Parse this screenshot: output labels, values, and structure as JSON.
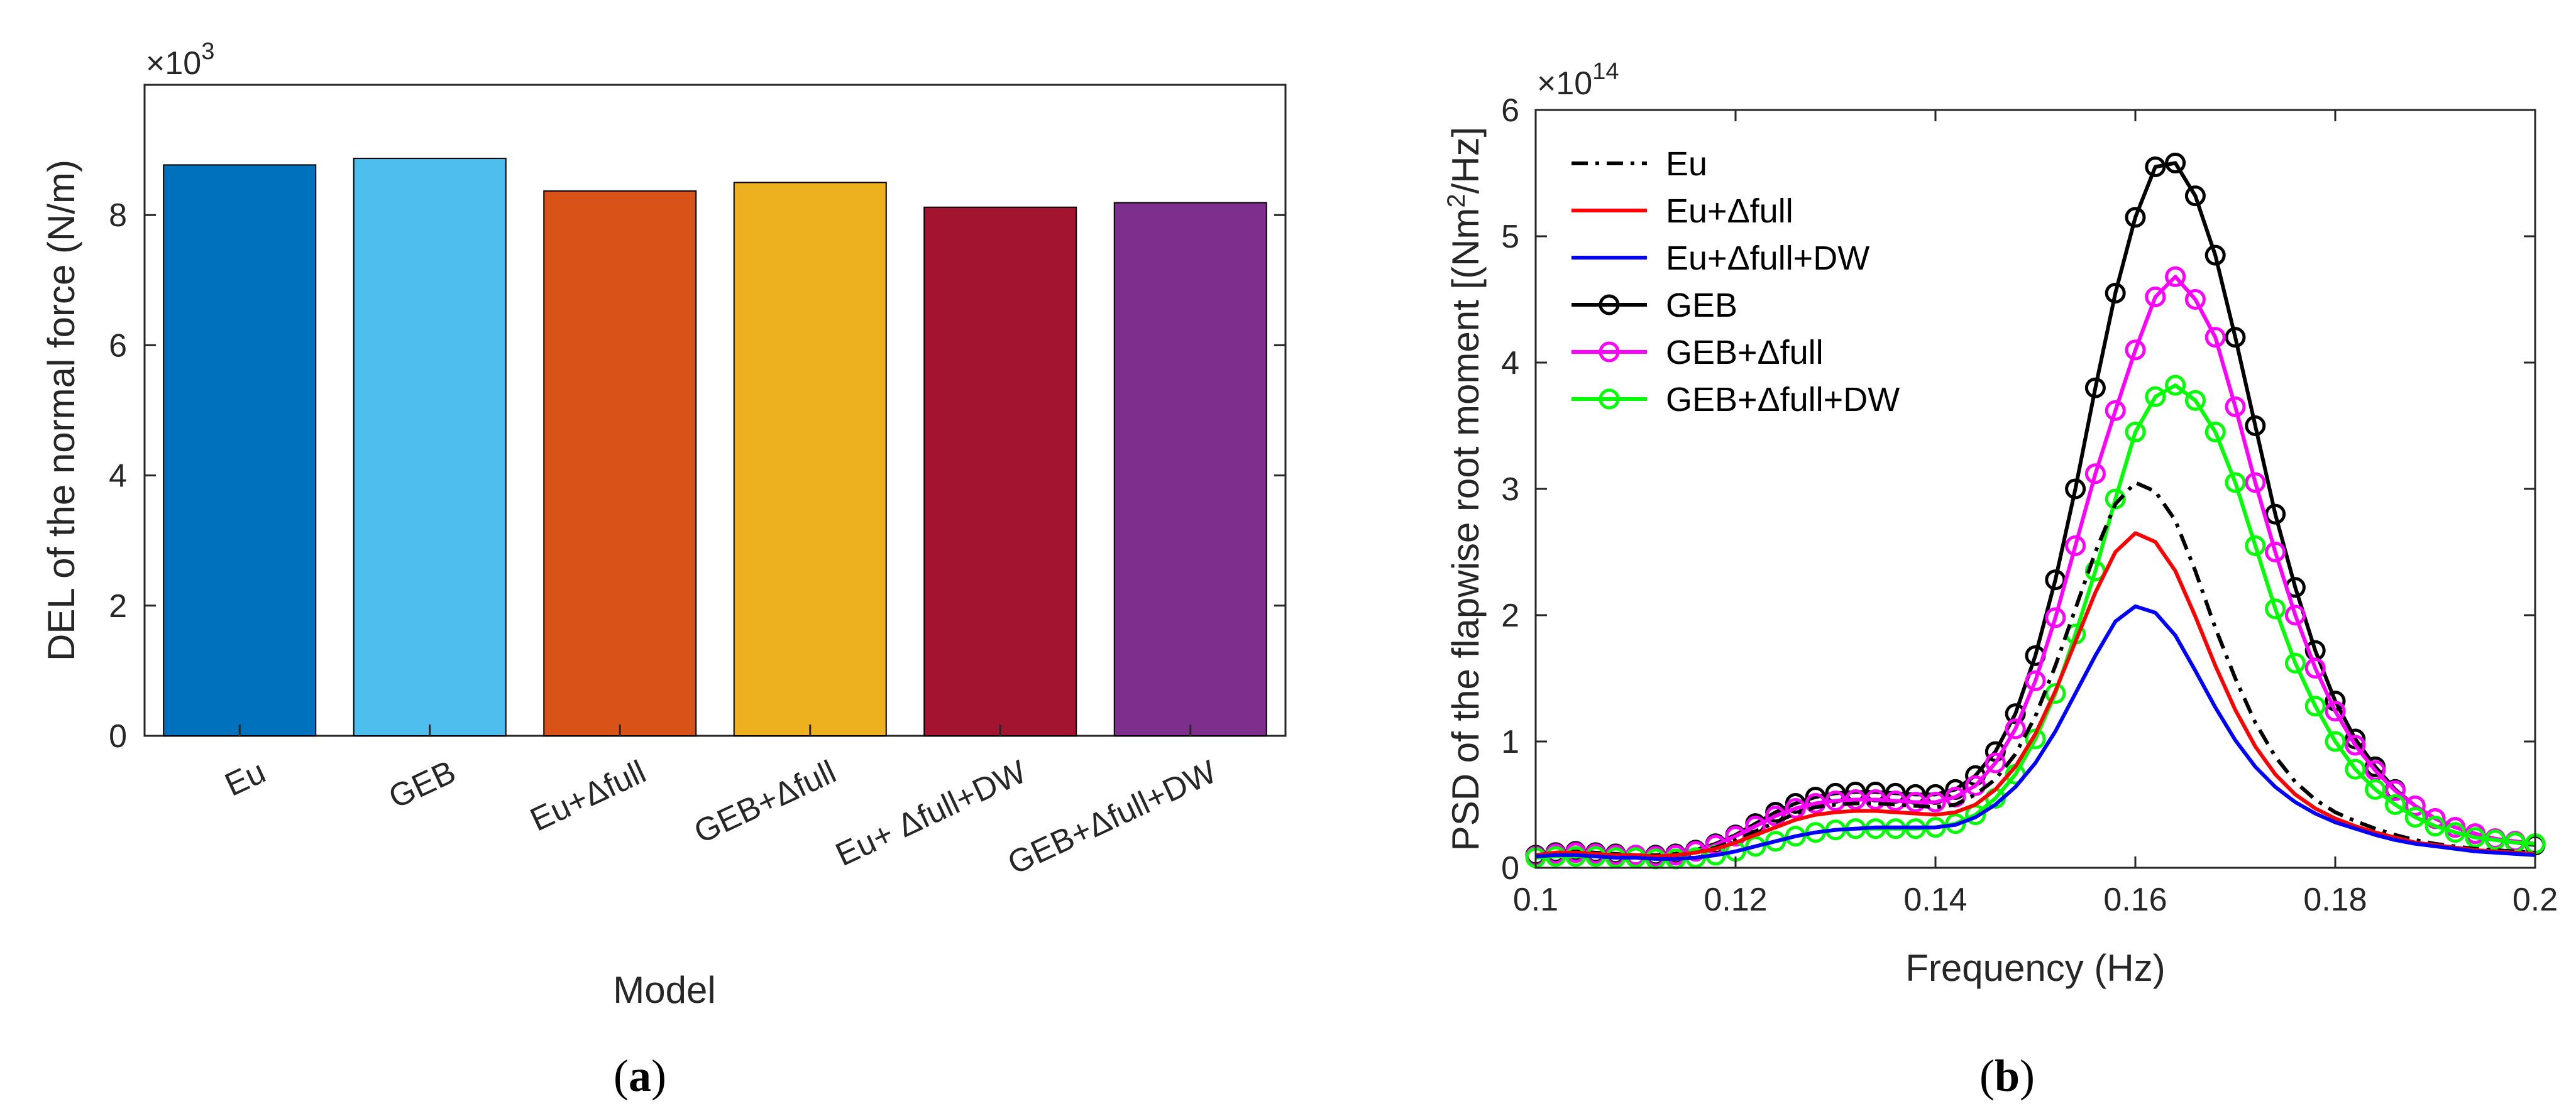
{
  "panels": {
    "a": {
      "caption_open": "(",
      "caption_letter": "a",
      "caption_close": ")"
    },
    "b": {
      "caption_open": "(",
      "caption_letter": "b",
      "caption_close": ")"
    }
  },
  "chart_data": [
    {
      "type": "bar",
      "title": "",
      "xlabel": "Model",
      "ylabel": "DEL of the normal force (N/m)",
      "exponent_label": "×10",
      "exponent_power": "3",
      "ylim": [
        0,
        10
      ],
      "yticks": [
        0,
        2,
        4,
        6,
        8
      ],
      "grid": false,
      "categories": [
        "Eu",
        "GEB",
        "Eu+Δfull",
        "GEB+Δfull",
        "Eu+ Δfull+DW",
        "GEB+Δfull+DW"
      ],
      "values": [
        8.77,
        8.87,
        8.37,
        8.5,
        8.12,
        8.19
      ],
      "colors": [
        "#0072BD",
        "#4DBEEE",
        "#D95319",
        "#EDB120",
        "#A2142F",
        "#7E2F8E"
      ]
    },
    {
      "type": "line",
      "title": "",
      "xlabel": "Frequency (Hz)",
      "ylabel_prefix": "PSD of the flapwise root moment [(Nm",
      "ylabel_sup": "2",
      "ylabel_suffix": "/Hz]",
      "exponent_label": "×10",
      "exponent_power": "14",
      "xlim": [
        0.1,
        0.2
      ],
      "ylim": [
        0,
        6
      ],
      "xticks": [
        "0.1",
        "0.12",
        "0.14",
        "0.16",
        "0.18",
        "0.2"
      ],
      "yticks": [
        "0",
        "1",
        "2",
        "3",
        "4",
        "5",
        "6"
      ],
      "grid": false,
      "legend_position": "top-left",
      "x": [
        0.1,
        0.102,
        0.104,
        0.106,
        0.108,
        0.11,
        0.112,
        0.114,
        0.116,
        0.118,
        0.12,
        0.122,
        0.124,
        0.126,
        0.128,
        0.13,
        0.132,
        0.134,
        0.136,
        0.138,
        0.14,
        0.142,
        0.144,
        0.146,
        0.148,
        0.15,
        0.152,
        0.154,
        0.156,
        0.158,
        0.16,
        0.162,
        0.164,
        0.166,
        0.168,
        0.17,
        0.172,
        0.174,
        0.176,
        0.178,
        0.18,
        0.182,
        0.184,
        0.186,
        0.188,
        0.19,
        0.192,
        0.194,
        0.196,
        0.198,
        0.2
      ],
      "series": [
        {
          "name": "Eu",
          "color": "#000000",
          "dash": "dashdot",
          "marker": false,
          "values": [
            0.1,
            0.12,
            0.12,
            0.11,
            0.1,
            0.1,
            0.09,
            0.1,
            0.12,
            0.16,
            0.22,
            0.29,
            0.36,
            0.43,
            0.48,
            0.5,
            0.51,
            0.51,
            0.5,
            0.49,
            0.48,
            0.5,
            0.58,
            0.7,
            0.9,
            1.2,
            1.6,
            2.05,
            2.5,
            2.88,
            3.05,
            2.98,
            2.75,
            2.35,
            1.9,
            1.5,
            1.15,
            0.88,
            0.68,
            0.54,
            0.44,
            0.37,
            0.31,
            0.26,
            0.22,
            0.19,
            0.17,
            0.15,
            0.14,
            0.13,
            0.12
          ]
        },
        {
          "name": "Eu+Δfull",
          "color": "#FF0000",
          "dash": "solid",
          "marker": false,
          "values": [
            0.1,
            0.12,
            0.12,
            0.11,
            0.1,
            0.1,
            0.09,
            0.1,
            0.12,
            0.15,
            0.2,
            0.26,
            0.32,
            0.38,
            0.42,
            0.44,
            0.45,
            0.45,
            0.44,
            0.43,
            0.42,
            0.44,
            0.5,
            0.62,
            0.8,
            1.06,
            1.4,
            1.79,
            2.18,
            2.5,
            2.65,
            2.58,
            2.35,
            1.99,
            1.6,
            1.25,
            0.96,
            0.74,
            0.58,
            0.47,
            0.39,
            0.33,
            0.28,
            0.24,
            0.2,
            0.18,
            0.16,
            0.14,
            0.13,
            0.12,
            0.11
          ]
        },
        {
          "name": "Eu+Δfull+DW",
          "color": "#0000FF",
          "dash": "solid",
          "marker": false,
          "values": [
            0.09,
            0.1,
            0.1,
            0.09,
            0.08,
            0.08,
            0.07,
            0.07,
            0.08,
            0.1,
            0.13,
            0.17,
            0.21,
            0.25,
            0.28,
            0.3,
            0.31,
            0.32,
            0.32,
            0.32,
            0.32,
            0.34,
            0.4,
            0.5,
            0.64,
            0.83,
            1.08,
            1.38,
            1.68,
            1.95,
            2.07,
            2.02,
            1.84,
            1.56,
            1.27,
            1.01,
            0.8,
            0.64,
            0.52,
            0.43,
            0.36,
            0.31,
            0.26,
            0.22,
            0.19,
            0.17,
            0.15,
            0.13,
            0.12,
            0.11,
            0.1
          ]
        },
        {
          "name": "GEB",
          "color": "#000000",
          "dash": "solid",
          "marker": true,
          "values": [
            0.1,
            0.12,
            0.13,
            0.12,
            0.11,
            0.1,
            0.1,
            0.11,
            0.14,
            0.19,
            0.26,
            0.35,
            0.44,
            0.51,
            0.56,
            0.59,
            0.6,
            0.6,
            0.59,
            0.58,
            0.58,
            0.62,
            0.73,
            0.92,
            1.22,
            1.68,
            2.28,
            3.0,
            3.8,
            4.55,
            5.15,
            5.55,
            5.58,
            5.32,
            4.85,
            4.2,
            3.5,
            2.8,
            2.22,
            1.72,
            1.32,
            1.02,
            0.8,
            0.62,
            0.49,
            0.39,
            0.32,
            0.27,
            0.23,
            0.2,
            0.18
          ]
        },
        {
          "name": "GEB+Δfull",
          "color": "#FF00FF",
          "dash": "solid",
          "marker": true,
          "values": [
            0.09,
            0.11,
            0.12,
            0.11,
            0.1,
            0.1,
            0.09,
            0.1,
            0.13,
            0.18,
            0.25,
            0.33,
            0.41,
            0.47,
            0.51,
            0.53,
            0.54,
            0.54,
            0.53,
            0.52,
            0.52,
            0.56,
            0.65,
            0.83,
            1.1,
            1.48,
            1.98,
            2.55,
            3.12,
            3.62,
            4.1,
            4.52,
            4.68,
            4.5,
            4.2,
            3.65,
            3.05,
            2.5,
            2.0,
            1.58,
            1.24,
            0.97,
            0.77,
            0.61,
            0.49,
            0.39,
            0.32,
            0.27,
            0.23,
            0.21,
            0.19
          ]
        },
        {
          "name": "GEB+Δfull+DW",
          "color": "#00FF00",
          "dash": "solid",
          "marker": true,
          "values": [
            0.08,
            0.09,
            0.09,
            0.09,
            0.08,
            0.08,
            0.07,
            0.07,
            0.08,
            0.1,
            0.13,
            0.17,
            0.21,
            0.25,
            0.28,
            0.3,
            0.31,
            0.31,
            0.31,
            0.31,
            0.32,
            0.35,
            0.42,
            0.55,
            0.74,
            1.02,
            1.38,
            1.85,
            2.35,
            2.92,
            3.45,
            3.73,
            3.82,
            3.7,
            3.45,
            3.05,
            2.55,
            2.05,
            1.62,
            1.28,
            1.0,
            0.78,
            0.62,
            0.5,
            0.4,
            0.33,
            0.28,
            0.24,
            0.22,
            0.2,
            0.19
          ]
        }
      ]
    }
  ]
}
